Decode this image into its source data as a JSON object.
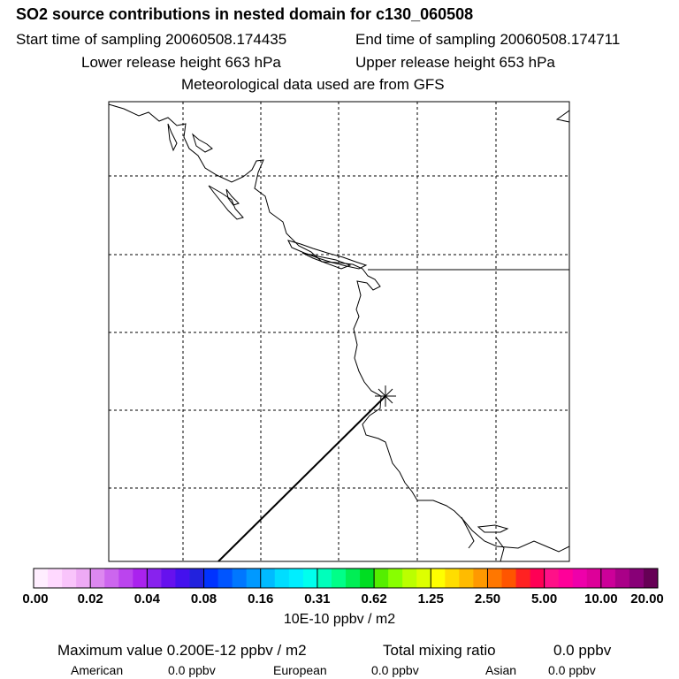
{
  "title": "SO2 source contributions in nested domain for c130_060508",
  "sampling": {
    "start": "Start time of sampling 20060508.174435",
    "end": "End time of sampling 20060508.174711"
  },
  "release": {
    "lower": "Lower release height  663 hPa",
    "upper": "Upper release height  653 hPa"
  },
  "met_source": "Meteorological data used are from GFS",
  "colorbar": {
    "units": "10E-10 ppbv / m2",
    "tick_labels": [
      "0.00",
      "0.02",
      "0.04",
      "0.08",
      "0.16",
      "0.31",
      "0.62",
      "1.25",
      "2.50",
      "5.00",
      "10.00",
      "20.00"
    ],
    "colors": [
      "#ffeeff",
      "#ffd9ff",
      "#f9c4fb",
      "#eeaaf5",
      "#dd88f0",
      "#cc66ee",
      "#bb44ee",
      "#aa22ee",
      "#8822ee",
      "#6611ee",
      "#4411ee",
      "#2222dd",
      "#0033ff",
      "#0055ff",
      "#0077ff",
      "#0099ff",
      "#00bbff",
      "#00ddff",
      "#00eeff",
      "#00ffee",
      "#00ffbb",
      "#00ff88",
      "#00ee55",
      "#00dd22",
      "#55ee00",
      "#88ff00",
      "#bbff00",
      "#ddff00",
      "#ffff00",
      "#ffdd00",
      "#ffbb00",
      "#ff9900",
      "#ff7700",
      "#ff5500",
      "#ff2222",
      "#ff0055",
      "#ff1188",
      "#ff0099",
      "#ee00aa",
      "#dd0099",
      "#cc0099",
      "#aa0088",
      "#880077",
      "#660055"
    ]
  },
  "stats": {
    "max_value": "Maximum value  0.200E-12 ppbv / m2",
    "total_label": "Total mixing ratio",
    "total_value": "0.0 ppbv"
  },
  "regions": [
    {
      "name": "American",
      "value": "0.0 ppbv"
    },
    {
      "name": "European",
      "value": "0.0 ppbv"
    },
    {
      "name": "Asian",
      "value": "0.0 ppbv"
    }
  ]
}
